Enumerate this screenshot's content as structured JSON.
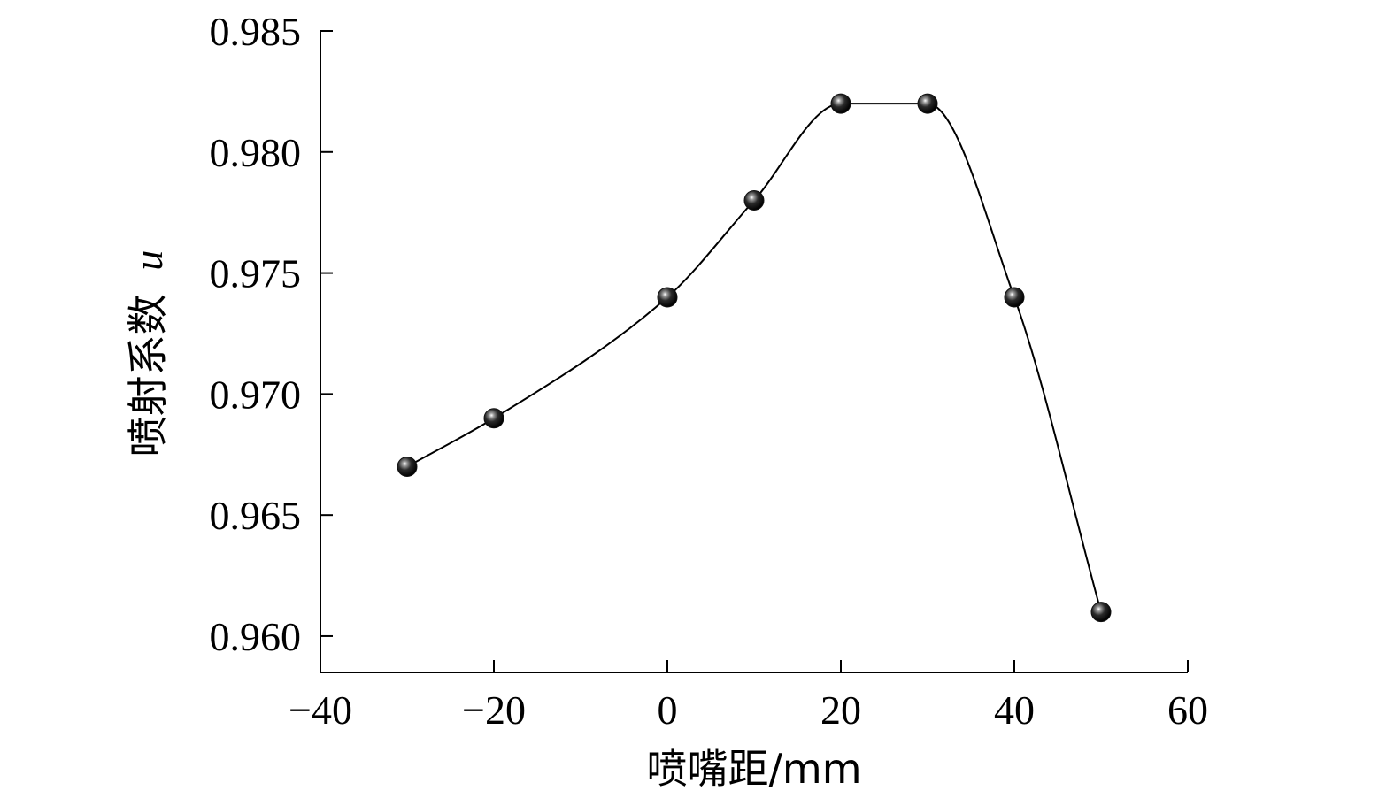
{
  "chart_data": {
    "type": "line",
    "xlabel": "喷嘴距/mm",
    "ylabel_text": "喷射系数",
    "ylabel_symbol": "u",
    "xlim": [
      -40,
      60
    ],
    "ylim": [
      0.9585,
      0.985
    ],
    "x_ticks": [
      -40,
      -20,
      0,
      20,
      40,
      60
    ],
    "x_tick_labels": [
      "−40",
      "−20",
      "0",
      "20",
      "40",
      "60"
    ],
    "y_ticks": [
      0.96,
      0.965,
      0.97,
      0.975,
      0.98,
      0.985
    ],
    "y_tick_labels": [
      "0.960",
      "0.965",
      "0.970",
      "0.975",
      "0.980",
      "0.985"
    ],
    "grid": false,
    "series": [
      {
        "x": [
          -30,
          -20,
          0,
          10,
          20,
          30,
          40,
          50
        ],
        "y": [
          0.967,
          0.969,
          0.974,
          0.978,
          0.982,
          0.982,
          0.974,
          0.961
        ],
        "marker": "sphere",
        "line_color": "#000000",
        "marker_color": "#111111"
      }
    ]
  }
}
